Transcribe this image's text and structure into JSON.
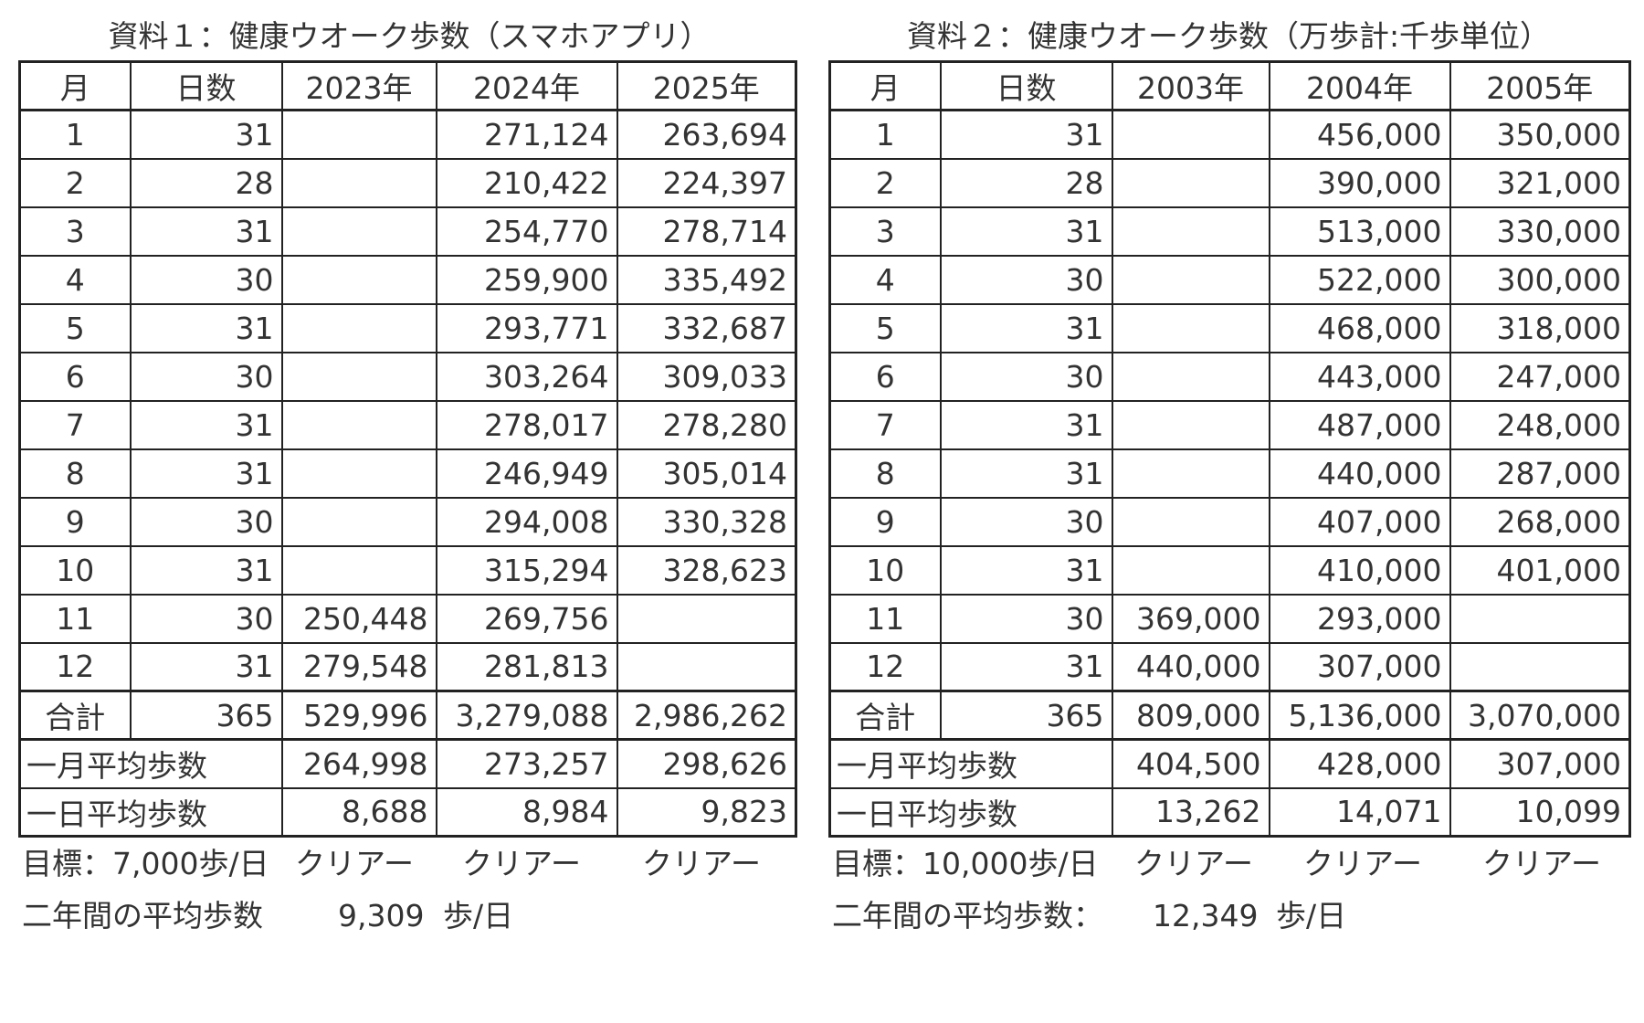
{
  "table1": {
    "title": "資料１：健康ウオーク歩数（スマホアプリ）",
    "headers": [
      "月",
      "日数",
      "2023年",
      "2024年",
      "2025年"
    ],
    "rows": [
      [
        "1",
        "31",
        "",
        "271,124",
        "263,694"
      ],
      [
        "2",
        "28",
        "",
        "210,422",
        "224,397"
      ],
      [
        "3",
        "31",
        "",
        "254,770",
        "278,714"
      ],
      [
        "4",
        "30",
        "",
        "259,900",
        "335,492"
      ],
      [
        "5",
        "31",
        "",
        "293,771",
        "332,687"
      ],
      [
        "6",
        "30",
        "",
        "303,264",
        "309,033"
      ],
      [
        "7",
        "31",
        "",
        "278,017",
        "278,280"
      ],
      [
        "8",
        "31",
        "",
        "246,949",
        "305,014"
      ],
      [
        "9",
        "30",
        "",
        "294,008",
        "330,328"
      ],
      [
        "10",
        "31",
        "",
        "315,294",
        "328,623"
      ],
      [
        "11",
        "30",
        "250,448",
        "269,756",
        ""
      ],
      [
        "12",
        "31",
        "279,548",
        "281,813",
        ""
      ]
    ],
    "total": [
      "合計",
      "365",
      "529,996",
      "3,279,088",
      "2,986,262"
    ],
    "monthly_avg": [
      "一月平均歩数",
      "264,998",
      "273,257",
      "298,626"
    ],
    "daily_avg": [
      "一日平均歩数",
      "8,688",
      "8,984",
      "9,823"
    ],
    "goal": {
      "label": "目標：7,000歩/日",
      "results": [
        "クリアー",
        "クリアー",
        "クリアー"
      ]
    },
    "two_year": {
      "label": "二年間の平均歩数",
      "value": "9,309",
      "unit": "歩/日"
    }
  },
  "table2": {
    "title": "資料２：健康ウオーク歩数（万歩計:千歩単位）",
    "headers": [
      "月",
      "日数",
      "2003年",
      "2004年",
      "2005年"
    ],
    "rows": [
      [
        "1",
        "31",
        "",
        "456,000",
        "350,000"
      ],
      [
        "2",
        "28",
        "",
        "390,000",
        "321,000"
      ],
      [
        "3",
        "31",
        "",
        "513,000",
        "330,000"
      ],
      [
        "4",
        "30",
        "",
        "522,000",
        "300,000"
      ],
      [
        "5",
        "31",
        "",
        "468,000",
        "318,000"
      ],
      [
        "6",
        "30",
        "",
        "443,000",
        "247,000"
      ],
      [
        "7",
        "31",
        "",
        "487,000",
        "248,000"
      ],
      [
        "8",
        "31",
        "",
        "440,000",
        "287,000"
      ],
      [
        "9",
        "30",
        "",
        "407,000",
        "268,000"
      ],
      [
        "10",
        "31",
        "",
        "410,000",
        "401,000"
      ],
      [
        "11",
        "30",
        "369,000",
        "293,000",
        ""
      ],
      [
        "12",
        "31",
        "440,000",
        "307,000",
        ""
      ]
    ],
    "total": [
      "合計",
      "365",
      "809,000",
      "5,136,000",
      "3,070,000"
    ],
    "monthly_avg": [
      "一月平均歩数",
      "404,500",
      "428,000",
      "307,000"
    ],
    "daily_avg": [
      "一日平均歩数",
      "13,262",
      "14,071",
      "10,099"
    ],
    "goal": {
      "label": "目標：10,000歩/日",
      "results": [
        "クリアー",
        "クリアー",
        "クリアー"
      ]
    },
    "two_year": {
      "label": "二年間の平均歩数：",
      "value": "12,349",
      "unit": "歩/日"
    }
  }
}
